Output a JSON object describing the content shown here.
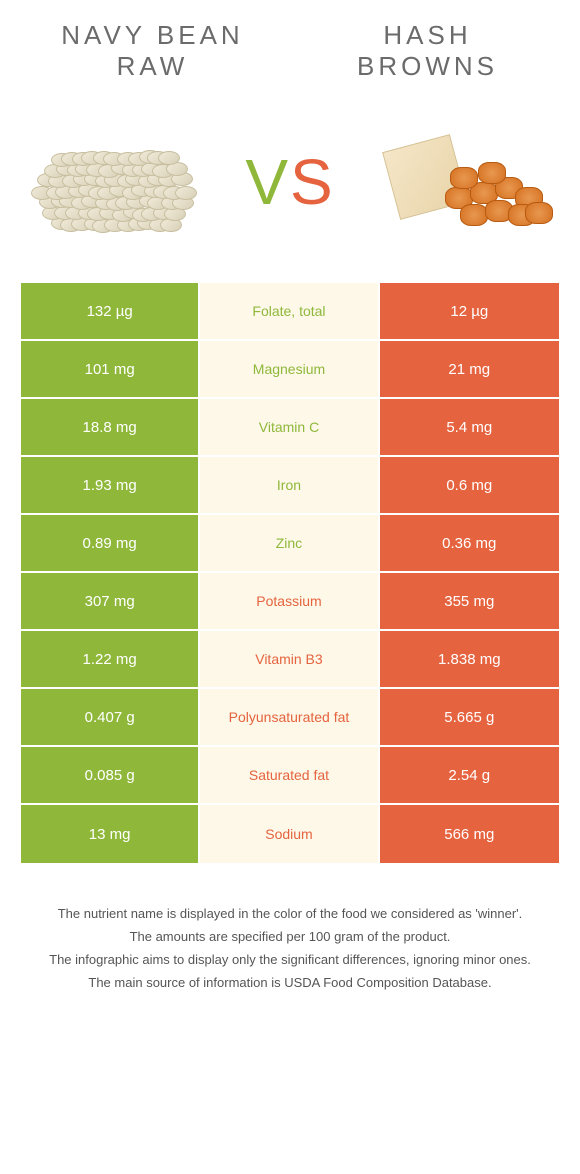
{
  "header": {
    "left_title_line1": "NAVY BEAN",
    "left_title_line2": "RAW",
    "right_title_line1": "HASH",
    "right_title_line2": "BROWNS"
  },
  "vs": {
    "v": "V",
    "s": "S"
  },
  "colors": {
    "left_bg": "#8fb83b",
    "right_bg": "#e5633f",
    "mid_bg": "#fdf8e8",
    "left_text": "#8fb83b",
    "right_text": "#e5633f"
  },
  "rows": [
    {
      "left": "132 µg",
      "label": "Folate, total",
      "right": "12 µg",
      "winner": "left"
    },
    {
      "left": "101 mg",
      "label": "Magnesium",
      "right": "21 mg",
      "winner": "left"
    },
    {
      "left": "18.8 mg",
      "label": "Vitamin C",
      "right": "5.4 mg",
      "winner": "left"
    },
    {
      "left": "1.93 mg",
      "label": "Iron",
      "right": "0.6 mg",
      "winner": "left"
    },
    {
      "left": "0.89 mg",
      "label": "Zinc",
      "right": "0.36 mg",
      "winner": "left"
    },
    {
      "left": "307 mg",
      "label": "Potassium",
      "right": "355 mg",
      "winner": "right"
    },
    {
      "left": "1.22 mg",
      "label": "Vitamin B3",
      "right": "1.838 mg",
      "winner": "right"
    },
    {
      "left": "0.407 g",
      "label": "Polyunsaturated fat",
      "right": "5.665 g",
      "winner": "right"
    },
    {
      "left": "0.085 g",
      "label": "Saturated fat",
      "right": "2.54 g",
      "winner": "right"
    },
    {
      "left": "13 mg",
      "label": "Sodium",
      "right": "566 mg",
      "winner": "right"
    }
  ],
  "footnotes": {
    "l1": "The nutrient name is displayed in the color of the food we considered as 'winner'.",
    "l2": "The amounts are specified per 100 gram of the product.",
    "l3": "The infographic aims to display only the significant differences, ignoring minor ones.",
    "l4": "The main source of information is USDA Food Composition Database."
  }
}
